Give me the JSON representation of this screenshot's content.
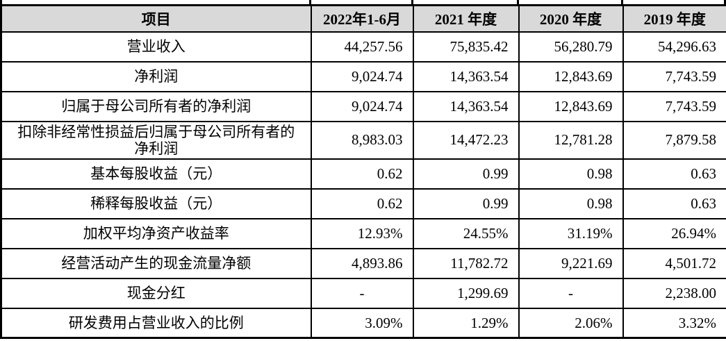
{
  "page": {
    "background_color": "#ffffff",
    "text_color": "#000000",
    "border_color": "#000000",
    "header_bg_color": "#d9d9d9"
  },
  "table": {
    "columns": [
      {
        "label": "项目"
      },
      {
        "label": "2022年1-6月"
      },
      {
        "label": "2021 年度"
      },
      {
        "label": "2020 年度"
      },
      {
        "label": "2019 年度"
      }
    ],
    "rows": [
      {
        "label": "营业收入",
        "values": [
          "44,257.56",
          "75,835.42",
          "56,280.79",
          "54,296.63"
        ]
      },
      {
        "label": "净利润",
        "values": [
          "9,024.74",
          "14,363.54",
          "12,843.69",
          "7,743.59"
        ]
      },
      {
        "label": "归属于母公司所有者的净利润",
        "values": [
          "9,024.74",
          "14,363.54",
          "12,843.69",
          "7,743.59"
        ]
      },
      {
        "label": "扣除非经常性损益后归属于母公司所有者的净利润",
        "values": [
          "8,983.03",
          "14,472.23",
          "12,781.28",
          "7,879.58"
        ],
        "tall": true
      },
      {
        "label": "基本每股收益（元）",
        "values": [
          "0.62",
          "0.99",
          "0.98",
          "0.63"
        ]
      },
      {
        "label": "稀释每股收益（元）",
        "values": [
          "0.62",
          "0.99",
          "0.98",
          "0.63"
        ]
      },
      {
        "label": "加权平均净资产收益率",
        "values": [
          "12.93%",
          "24.55%",
          "31.19%",
          "26.94%"
        ]
      },
      {
        "label": "经营活动产生的现金流量净额",
        "values": [
          "4,893.86",
          "11,782.72",
          "9,221.69",
          "4,501.72"
        ]
      },
      {
        "label": "现金分红",
        "values": [
          "-",
          "1,299.69",
          "-",
          "2,238.00"
        ]
      },
      {
        "label": "研发费用占营业收入的比例",
        "values": [
          "3.09%",
          "1.29%",
          "2.06%",
          "3.32%"
        ]
      }
    ]
  }
}
